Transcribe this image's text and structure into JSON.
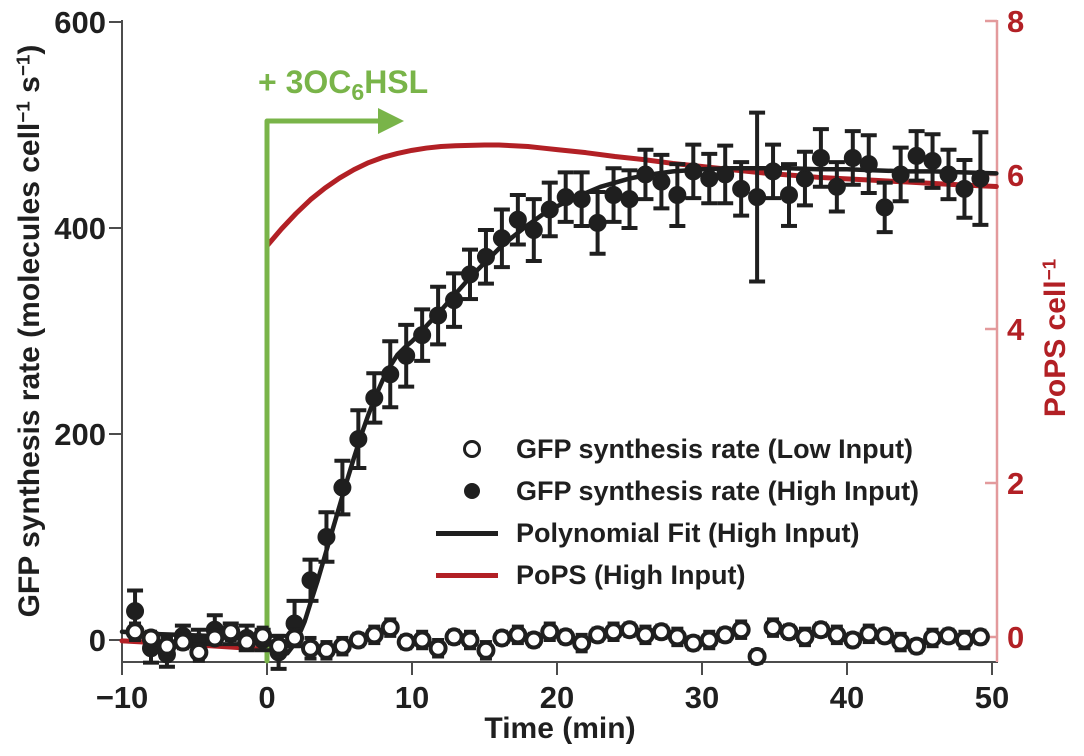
{
  "figure": {
    "colors": {
      "black": "#1f1f1f",
      "axis_gray": "#4c4c4c",
      "red": "#b22025",
      "red_axis_light": "#e39a9c",
      "green": "#79b449",
      "background": "#ffffff"
    },
    "x_axis": {
      "label": "Time (min)",
      "tick_values": [
        -10,
        0,
        10,
        20,
        30,
        40,
        50
      ],
      "tick_labels": [
        "−10",
        "0",
        "10",
        "20",
        "30",
        "40",
        "50"
      ]
    },
    "y_left_axis": {
      "label_segments": [
        {
          "t": "GFP synthesis rate (molecules cell"
        },
        {
          "t": "−1",
          "sup": true
        },
        {
          "t": " s"
        },
        {
          "t": "−1",
          "sup": true
        },
        {
          "t": ")"
        }
      ],
      "tick_values": [
        0,
        200,
        400,
        600
      ],
      "tick_labels": [
        "0",
        "200",
        "400",
        "600"
      ]
    },
    "y_right_axis": {
      "label_segments": [
        {
          "t": "PoPS cell"
        },
        {
          "t": "−1",
          "sup": true
        }
      ],
      "tick_values": [
        0,
        2,
        4,
        6,
        8
      ],
      "tick_labels": [
        "0",
        "2",
        "4",
        "6",
        "8"
      ]
    },
    "annotation_segments": [
      {
        "t": "+ 3OC"
      },
      {
        "t": "6",
        "sub": true
      },
      {
        "t": "HSL"
      }
    ],
    "legend": [
      {
        "marker": "open-circle",
        "label": "GFP synthesis rate (Low Input)"
      },
      {
        "marker": "filled-circle",
        "label": "GFP synthesis rate (High Input)"
      },
      {
        "marker": "black-line",
        "label": "Polynomial Fit (High Input)"
      },
      {
        "marker": "red-line",
        "label": "PoPS (High Input)"
      }
    ]
  },
  "chart_data": {
    "type": "scatter",
    "title": "",
    "xlabel": "Time (min)",
    "ylabel_left": "GFP synthesis rate (molecules cell-1 s-1)",
    "ylabel_right": "PoPS cell-1",
    "xlim": [
      -10,
      50.3
    ],
    "ylim_left": [
      -21,
      600
    ],
    "ylim_right": [
      -0.33,
      8.05
    ],
    "grid": false,
    "legend_position": "center-right",
    "annotation": {
      "text": "+ 3OC6HSL",
      "at_x": 0,
      "arrow_from_x": 0,
      "arrow_to_x": 9.3,
      "color": "#79b449"
    },
    "series": [
      {
        "name": "GFP synthesis rate (Low Input)",
        "type": "scatter",
        "marker": "open-circle",
        "axis": "left",
        "color": "#1f1f1f",
        "points_t_value_err": [
          [
            -9.1,
            8,
            8
          ],
          [
            -8,
            2,
            6
          ],
          [
            -6.9,
            -6,
            8
          ],
          [
            -5.8,
            -2,
            6
          ],
          [
            -4.7,
            -12,
            8
          ],
          [
            -3.6,
            2,
            6
          ],
          [
            -2.5,
            8,
            8
          ],
          [
            -1.4,
            -2,
            6
          ],
          [
            -0.3,
            4,
            8
          ],
          [
            0.8,
            -6,
            10
          ],
          [
            1.9,
            2,
            8
          ],
          [
            3,
            -8,
            10
          ],
          [
            4.1,
            -10,
            8
          ],
          [
            5.2,
            -6,
            8
          ],
          [
            6.3,
            0,
            6
          ],
          [
            7.4,
            5,
            8
          ],
          [
            8.5,
            12,
            8
          ],
          [
            9.6,
            -2,
            6
          ],
          [
            10.7,
            0,
            8
          ],
          [
            11.8,
            -8,
            8
          ],
          [
            12.9,
            3,
            6
          ],
          [
            14,
            0,
            8
          ],
          [
            15.1,
            -10,
            8
          ],
          [
            16.2,
            2,
            6
          ],
          [
            17.3,
            5,
            8
          ],
          [
            18.4,
            0,
            6
          ],
          [
            19.5,
            8,
            8
          ],
          [
            20.6,
            3,
            6
          ],
          [
            21.7,
            -3,
            8
          ],
          [
            22.8,
            5,
            6
          ],
          [
            23.9,
            8,
            8
          ],
          [
            25,
            10,
            6
          ],
          [
            26.1,
            5,
            8
          ],
          [
            27.2,
            8,
            6
          ],
          [
            28.3,
            3,
            8
          ],
          [
            29.4,
            -3,
            6
          ],
          [
            30.5,
            0,
            8
          ],
          [
            31.6,
            5,
            6
          ],
          [
            32.7,
            10,
            8
          ],
          [
            33.8,
            -16,
            6
          ],
          [
            34.9,
            12,
            8
          ],
          [
            36,
            8,
            6
          ],
          [
            37.1,
            3,
            8
          ],
          [
            38.2,
            10,
            6
          ],
          [
            39.3,
            5,
            8
          ],
          [
            40.4,
            0,
            6
          ],
          [
            41.5,
            6,
            8
          ],
          [
            42.6,
            4,
            6
          ],
          [
            43.7,
            -2,
            8
          ],
          [
            44.8,
            -6,
            6
          ],
          [
            45.9,
            2,
            8
          ],
          [
            47,
            4,
            6
          ],
          [
            48.1,
            0,
            8
          ],
          [
            49.2,
            3,
            6
          ]
        ]
      },
      {
        "name": "GFP synthesis rate (High Input)",
        "type": "scatter",
        "marker": "filled-circle",
        "axis": "left",
        "color": "#1f1f1f",
        "points_t_value_err": [
          [
            -9.1,
            28,
            20
          ],
          [
            -8,
            -8,
            14
          ],
          [
            -6.9,
            -14,
            12
          ],
          [
            -5.8,
            4,
            10
          ],
          [
            -4.7,
            -2,
            12
          ],
          [
            -3.6,
            10,
            14
          ],
          [
            -2.5,
            6,
            10
          ],
          [
            -1.4,
            2,
            12
          ],
          [
            -0.3,
            0,
            10
          ],
          [
            0.8,
            -12,
            16
          ],
          [
            1.9,
            16,
            22
          ],
          [
            3,
            58,
            20
          ],
          [
            4.1,
            100,
            24
          ],
          [
            5.2,
            148,
            26
          ],
          [
            6.3,
            195,
            28
          ],
          [
            7.4,
            235,
            24
          ],
          [
            8.5,
            258,
            32
          ],
          [
            9.6,
            276,
            30
          ],
          [
            10.7,
            296,
            25
          ],
          [
            11.8,
            315,
            28
          ],
          [
            12.9,
            330,
            26
          ],
          [
            14,
            355,
            24
          ],
          [
            15.1,
            372,
            26
          ],
          [
            16.2,
            390,
            28
          ],
          [
            17.3,
            408,
            24
          ],
          [
            18.4,
            398,
            30
          ],
          [
            19.5,
            418,
            26
          ],
          [
            20.6,
            430,
            24
          ],
          [
            21.7,
            428,
            26
          ],
          [
            22.8,
            405,
            30
          ],
          [
            23.9,
            432,
            26
          ],
          [
            25,
            428,
            28
          ],
          [
            26.1,
            452,
            24
          ],
          [
            27.2,
            445,
            26
          ],
          [
            28.3,
            432,
            30
          ],
          [
            29.4,
            455,
            26
          ],
          [
            30.5,
            448,
            24
          ],
          [
            31.6,
            452,
            28
          ],
          [
            32.7,
            438,
            26
          ],
          [
            33.8,
            430,
            82
          ],
          [
            34.9,
            455,
            26
          ],
          [
            36,
            432,
            30
          ],
          [
            37.1,
            448,
            26
          ],
          [
            38.2,
            468,
            28
          ],
          [
            39.3,
            440,
            24
          ],
          [
            40.4,
            468,
            26
          ],
          [
            41.5,
            462,
            28
          ],
          [
            42.6,
            420,
            24
          ],
          [
            43.7,
            452,
            26
          ],
          [
            44.8,
            470,
            24
          ],
          [
            45.9,
            465,
            26
          ],
          [
            47,
            452,
            24
          ],
          [
            48.1,
            438,
            28
          ],
          [
            49.2,
            448,
            45
          ]
        ]
      },
      {
        "name": "Polynomial Fit (High Input)",
        "type": "line",
        "axis": "left",
        "color": "#1f1f1f",
        "points_t_value": [
          [
            -10,
            8
          ],
          [
            -8,
            6
          ],
          [
            -6,
            5
          ],
          [
            -4,
            4
          ],
          [
            -2,
            2
          ],
          [
            -1,
            1
          ],
          [
            0,
            -5
          ],
          [
            0.7,
            -12
          ],
          [
            1.4,
            -13
          ],
          [
            2,
            -2
          ],
          [
            2.6,
            18
          ],
          [
            3,
            36
          ],
          [
            3.5,
            58
          ],
          [
            4,
            82
          ],
          [
            4.5,
            106
          ],
          [
            5,
            130
          ],
          [
            5.5,
            154
          ],
          [
            6,
            177
          ],
          [
            6.5,
            199
          ],
          [
            7,
            219
          ],
          [
            7.5,
            237
          ],
          [
            8,
            253
          ],
          [
            8.5,
            266
          ],
          [
            9,
            277
          ],
          [
            9.5,
            284
          ],
          [
            10,
            290
          ],
          [
            10.5,
            297
          ],
          [
            11,
            305
          ],
          [
            12,
            320
          ],
          [
            13,
            336
          ],
          [
            14,
            352
          ],
          [
            15,
            366
          ],
          [
            16,
            380
          ],
          [
            17,
            392
          ],
          [
            18,
            403
          ],
          [
            19,
            413
          ],
          [
            20,
            421
          ],
          [
            21,
            428
          ],
          [
            22,
            434
          ],
          [
            23,
            440
          ],
          [
            24,
            444
          ],
          [
            25,
            448
          ],
          [
            26,
            451
          ],
          [
            27,
            453
          ],
          [
            28,
            455
          ],
          [
            29,
            456
          ],
          [
            30,
            457
          ],
          [
            32,
            458
          ],
          [
            34,
            458
          ],
          [
            36,
            458
          ],
          [
            38,
            457
          ],
          [
            40,
            457
          ],
          [
            42,
            456
          ],
          [
            44,
            455
          ],
          [
            46,
            455
          ],
          [
            48,
            454
          ],
          [
            50.3,
            453
          ]
        ]
      },
      {
        "name": "PoPS (High Input)",
        "type": "line",
        "axis": "right",
        "color": "#b22025",
        "segments_t_pops": [
          [
            [
              -10,
              -0.05
            ],
            [
              -5,
              -0.1
            ],
            [
              -0.1,
              -0.16
            ]
          ],
          [
            [
              0,
              5.08
            ],
            [
              1,
              5.3
            ],
            [
              2,
              5.5
            ],
            [
              3,
              5.68
            ],
            [
              4,
              5.83
            ],
            [
              5,
              5.96
            ],
            [
              6,
              6.07
            ],
            [
              7,
              6.16
            ],
            [
              8,
              6.23
            ],
            [
              9,
              6.28
            ],
            [
              10,
              6.32
            ],
            [
              11,
              6.35
            ],
            [
              12,
              6.37
            ],
            [
              13,
              6.38
            ],
            [
              14,
              6.385
            ],
            [
              15,
              6.39
            ],
            [
              16,
              6.39
            ],
            [
              17,
              6.38
            ],
            [
              18,
              6.37
            ],
            [
              19,
              6.35
            ],
            [
              20,
              6.33
            ],
            [
              22,
              6.29
            ],
            [
              24,
              6.24
            ],
            [
              26,
              6.2
            ],
            [
              28,
              6.15
            ],
            [
              30,
              6.11
            ],
            [
              32,
              6.07
            ],
            [
              34,
              6.03
            ],
            [
              36,
              6.0
            ],
            [
              38,
              5.97
            ],
            [
              40,
              5.95
            ],
            [
              42,
              5.93
            ],
            [
              44,
              5.91
            ],
            [
              46,
              5.89
            ],
            [
              48,
              5.87
            ],
            [
              50.3,
              5.85
            ]
          ]
        ]
      }
    ]
  }
}
